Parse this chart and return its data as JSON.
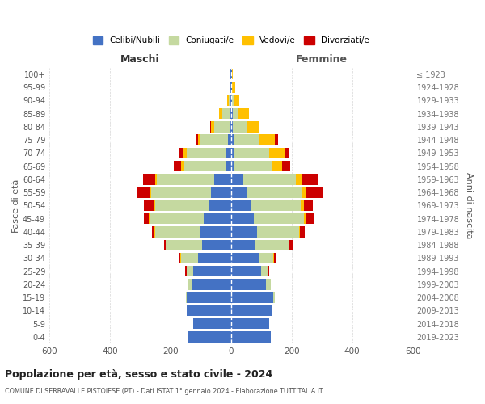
{
  "age_groups": [
    "0-4",
    "5-9",
    "10-14",
    "15-19",
    "20-24",
    "25-29",
    "30-34",
    "35-39",
    "40-44",
    "45-49",
    "50-54",
    "55-59",
    "60-64",
    "65-69",
    "70-74",
    "75-79",
    "80-84",
    "85-89",
    "90-94",
    "95-99",
    "100+"
  ],
  "birth_years": [
    "2019-2023",
    "2014-2018",
    "2009-2013",
    "2004-2008",
    "1999-2003",
    "1994-1998",
    "1989-1993",
    "1984-1988",
    "1979-1983",
    "1974-1978",
    "1969-1973",
    "1964-1968",
    "1959-1963",
    "1954-1958",
    "1949-1953",
    "1944-1948",
    "1939-1943",
    "1934-1938",
    "1929-1933",
    "1924-1928",
    "≤ 1923"
  ],
  "colors": {
    "celibi": "#4472c4",
    "coniugati": "#c5d9a0",
    "vedovi": "#ffc000",
    "divorziati": "#cc0000",
    "background": "#ffffff",
    "grid": "#cccccc",
    "dashed_line": "#ffffff"
  },
  "maschi": {
    "celibi": [
      140,
      125,
      145,
      145,
      130,
      125,
      110,
      95,
      100,
      90,
      75,
      65,
      55,
      15,
      15,
      10,
      5,
      5,
      3,
      3,
      2
    ],
    "coniugati": [
      0,
      0,
      0,
      5,
      10,
      20,
      55,
      120,
      150,
      180,
      175,
      200,
      190,
      140,
      130,
      90,
      50,
      25,
      5,
      0,
      0
    ],
    "vedovi": [
      0,
      0,
      0,
      0,
      0,
      2,
      2,
      2,
      2,
      2,
      3,
      3,
      5,
      10,
      15,
      10,
      10,
      10,
      5,
      3,
      0
    ],
    "divorziati": [
      0,
      0,
      0,
      0,
      2,
      5,
      5,
      5,
      10,
      15,
      35,
      40,
      40,
      25,
      10,
      5,
      5,
      0,
      0,
      0,
      0
    ]
  },
  "femmine": {
    "celibi": [
      130,
      125,
      135,
      140,
      115,
      100,
      90,
      80,
      85,
      75,
      65,
      50,
      40,
      10,
      10,
      10,
      5,
      5,
      3,
      3,
      2
    ],
    "coniugati": [
      0,
      0,
      0,
      5,
      15,
      20,
      50,
      110,
      140,
      165,
      165,
      185,
      175,
      125,
      115,
      80,
      45,
      20,
      5,
      0,
      0
    ],
    "vedovi": [
      0,
      0,
      0,
      0,
      0,
      2,
      2,
      3,
      3,
      5,
      10,
      15,
      20,
      35,
      55,
      55,
      40,
      35,
      20,
      10,
      3
    ],
    "divorziati": [
      0,
      0,
      0,
      0,
      2,
      3,
      5,
      10,
      15,
      30,
      30,
      55,
      55,
      25,
      10,
      10,
      5,
      0,
      0,
      0,
      0
    ]
  },
  "title": "Popolazione per età, sesso e stato civile - 2024",
  "subtitle": "COMUNE DI SERRAVALLE PISTOIESE (PT) - Dati ISTAT 1° gennaio 2024 - Elaborazione TUTTITALIA.IT",
  "xlabel_left": "Maschi",
  "xlabel_right": "Femmine",
  "ylabel_left": "Fasce di età",
  "ylabel_right": "Anni di nascita",
  "xlim": 600,
  "legend_labels": [
    "Celibi/Nubili",
    "Coniugati/e",
    "Vedovi/e",
    "Divorziati/e"
  ]
}
